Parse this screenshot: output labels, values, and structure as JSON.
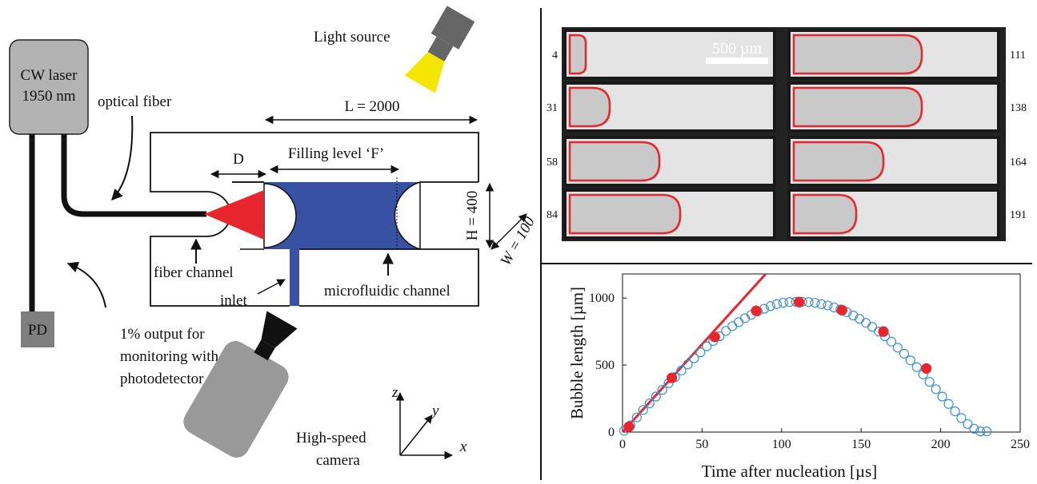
{
  "diagram": {
    "light_source": "Light source",
    "laser_line1": "CW laser",
    "laser_line2": "1950 nm",
    "optical_fiber": "optical fiber",
    "length": "L = 2000",
    "d": "D",
    "filling_level": "Filling level ‘F’",
    "height": "H = 400",
    "width": "W = 100",
    "fiber_channel": "fiber channel",
    "inlet": "inlet",
    "microfluidic_channel": "microfluidic channel",
    "pd": "PD",
    "output_line1": "1% output for",
    "output_line2": "monitoring with",
    "output_line3": "photodetector",
    "camera_line1": "High-speed",
    "camera_line2": "camera",
    "axis_z": "z",
    "axis_y": "y",
    "axis_x": "x"
  },
  "micrographs": {
    "scale_bar": "500 µm",
    "left_frames": [
      "4",
      "31",
      "58",
      "84"
    ],
    "right_frames": [
      "111",
      "138",
      "164",
      "191"
    ]
  },
  "chart_data": {
    "type": "scatter",
    "xlabel": "Time after nucleation [µs]",
    "ylabel": "Bubble length [µm]",
    "xlim": [
      0,
      250
    ],
    "ylim": [
      0,
      1180
    ],
    "xticks": [
      0,
      50,
      100,
      150,
      200,
      250
    ],
    "yticks": [
      0,
      500,
      1000
    ],
    "series": [
      {
        "style": "line",
        "color": "#e8262d",
        "x": [
          0,
          90
        ],
        "values": [
          0,
          1180
        ]
      },
      {
        "style": "open",
        "color": "#3d8fd1",
        "x": [
          1,
          5,
          9,
          13,
          17,
          21,
          25,
          29,
          33,
          37,
          41,
          45,
          49,
          53,
          57,
          61,
          65,
          69,
          73,
          77,
          81,
          85,
          89,
          93,
          97,
          101,
          105,
          109,
          113,
          117,
          121,
          125,
          129,
          133,
          137,
          141,
          145,
          149,
          153,
          157,
          161,
          165,
          169,
          173,
          177,
          181,
          185,
          189,
          193,
          197,
          201,
          205,
          209,
          213,
          217,
          221,
          225,
          229
        ],
        "values": [
          10,
          50,
          110,
          165,
          215,
          265,
          315,
          365,
          410,
          460,
          505,
          550,
          595,
          640,
          680,
          715,
          755,
          790,
          820,
          850,
          875,
          900,
          920,
          940,
          955,
          965,
          970,
          972,
          972,
          970,
          965,
          955,
          945,
          930,
          915,
          895,
          870,
          845,
          815,
          785,
          750,
          715,
          675,
          630,
          585,
          535,
          485,
          430,
          375,
          320,
          265,
          210,
          155,
          105,
          60,
          25,
          5,
          5
        ]
      },
      {
        "style": "filled",
        "color": "#e8262d",
        "x": [
          4,
          31,
          58,
          84,
          111,
          138,
          164,
          191
        ],
        "values": [
          40,
          405,
          710,
          905,
          970,
          910,
          750,
          475
        ]
      }
    ]
  }
}
